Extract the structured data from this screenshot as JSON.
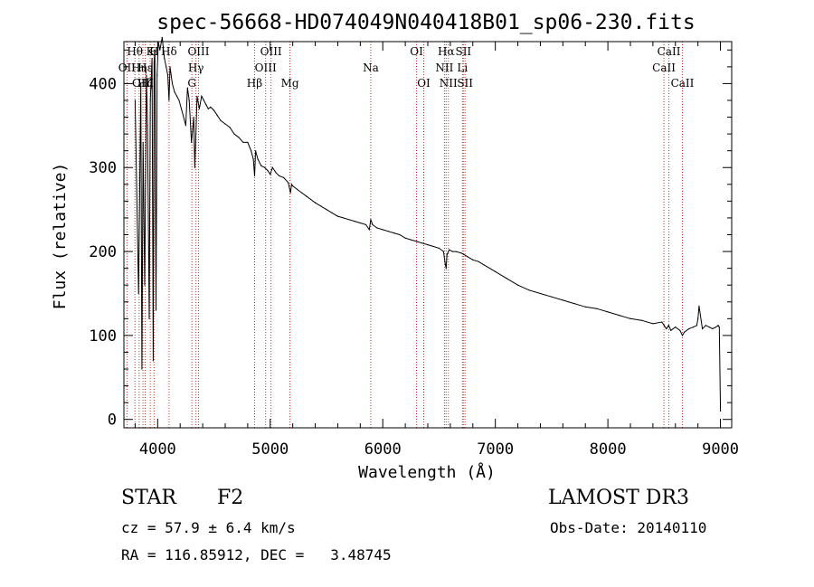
{
  "chart_data": {
    "type": "line",
    "title": "spec-56668-HD074049N040418B01_sp06-230.fits",
    "xlabel": "Wavelength (Å)",
    "ylabel": "Flux (relative)",
    "xlim": [
      3700,
      9100
    ],
    "ylim": [
      -10,
      450
    ],
    "xticks": [
      4000,
      5000,
      6000,
      7000,
      8000,
      9000
    ],
    "yticks": [
      0,
      100,
      200,
      300,
      400
    ],
    "x_minor_step": 200,
    "y_minor_step": 20,
    "series": [
      {
        "name": "flux",
        "x": [
          3800,
          3830,
          3850,
          3860,
          3870,
          3885,
          3900,
          3910,
          3925,
          3935,
          3950,
          3960,
          3968,
          3975,
          3985,
          3995,
          4005,
          4020,
          4040,
          4060,
          4075,
          4090,
          4101,
          4110,
          4130,
          4150,
          4170,
          4190,
          4210,
          4230,
          4250,
          4265,
          4280,
          4300,
          4320,
          4330,
          4340,
          4350,
          4370,
          4390,
          4410,
          4430,
          4450,
          4470,
          4500,
          4530,
          4560,
          4600,
          4640,
          4680,
          4720,
          4760,
          4800,
          4830,
          4850,
          4861,
          4870,
          4890,
          4920,
          4950,
          4980,
          5000,
          5020,
          5050,
          5080,
          5120,
          5160,
          5180,
          5190,
          5200,
          5240,
          5280,
          5320,
          5360,
          5400,
          5450,
          5500,
          5550,
          5600,
          5650,
          5700,
          5750,
          5800,
          5850,
          5880,
          5893,
          5910,
          5950,
          6000,
          6050,
          6100,
          6150,
          6200,
          6250,
          6300,
          6350,
          6400,
          6450,
          6500,
          6540,
          6555,
          6563,
          6570,
          6590,
          6620,
          6650,
          6700,
          6750,
          6800,
          6850,
          6900,
          7000,
          7100,
          7200,
          7300,
          7400,
          7500,
          7600,
          7700,
          7800,
          7900,
          8000,
          8100,
          8200,
          8300,
          8400,
          8480,
          8500,
          8520,
          8540,
          8560,
          8600,
          8640,
          8662,
          8680,
          8720,
          8760,
          8790,
          8800,
          8810,
          8840,
          8870,
          8900,
          8930,
          8960,
          8980,
          8990,
          9000
        ],
        "y": [
          380,
          150,
          400,
          60,
          330,
          160,
          410,
          350,
          120,
          380,
          430,
          70,
          425,
          440,
          130,
          410,
          450,
          440,
          455,
          430,
          420,
          410,
          380,
          420,
          400,
          390,
          385,
          380,
          370,
          360,
          350,
          395,
          380,
          330,
          360,
          300,
          340,
          385,
          370,
          385,
          380,
          375,
          370,
          372,
          368,
          362,
          356,
          352,
          348,
          340,
          336,
          330,
          330,
          320,
          310,
          290,
          320,
          310,
          302,
          300,
          296,
          292,
          300,
          294,
          290,
          288,
          282,
          270,
          280,
          278,
          274,
          270,
          266,
          262,
          258,
          254,
          250,
          246,
          242,
          240,
          238,
          236,
          234,
          232,
          226,
          238,
          232,
          228,
          226,
          224,
          222,
          220,
          216,
          214,
          212,
          210,
          208,
          206,
          204,
          200,
          185,
          180,
          196,
          202,
          200,
          200,
          198,
          194,
          190,
          188,
          184,
          176,
          168,
          160,
          154,
          150,
          146,
          142,
          138,
          134,
          132,
          128,
          124,
          120,
          118,
          114,
          116,
          112,
          108,
          112,
          106,
          110,
          106,
          100,
          104,
          108,
          110,
          112,
          120,
          135,
          108,
          112,
          110,
          108,
          110,
          112,
          110,
          10
        ]
      }
    ],
    "spectral_lines": [
      {
        "label": "Hθ",
        "x": 3798,
        "row": 0
      },
      {
        "label": "OII",
        "x": 3727,
        "row": 1
      },
      {
        "label": "OIII",
        "x": 3869,
        "row": 2
      },
      {
        "label": "K",
        "x": 3934,
        "row": 0
      },
      {
        "label": "H",
        "x": 3968,
        "row": 0
      },
      {
        "label": "Hε",
        "x": 3889,
        "row": 1
      },
      {
        "label": "Hδ",
        "x": 4101,
        "row": 0
      },
      {
        "label": "Hη",
        "x": 3835,
        "row": 1
      },
      {
        "label": "Hζ",
        "x": 3889,
        "row": 2
      },
      {
        "label": "OIII",
        "x": 4363,
        "row": 0
      },
      {
        "label": "Hγ",
        "x": 4340,
        "row": 1
      },
      {
        "label": "G",
        "x": 4304,
        "row": 2
      },
      {
        "label": "OIII",
        "x": 5007,
        "row": 0
      },
      {
        "label": "OIII",
        "x": 4959,
        "row": 1
      },
      {
        "label": "Hβ",
        "x": 4861,
        "row": 2
      },
      {
        "label": "Mg",
        "x": 5175,
        "row": 2
      },
      {
        "label": "Na",
        "x": 5893,
        "row": 1
      },
      {
        "label": "OI",
        "x": 6300,
        "row": 0
      },
      {
        "label": "OI",
        "x": 6364,
        "row": 2
      },
      {
        "label": "Hα",
        "x": 6563,
        "row": 0
      },
      {
        "label": "SII",
        "x": 6716,
        "row": 0
      },
      {
        "label": "NII",
        "x": 6548,
        "row": 1
      },
      {
        "label": "Li",
        "x": 6708,
        "row": 1
      },
      {
        "label": "NII",
        "x": 6583,
        "row": 2
      },
      {
        "label": "SII",
        "x": 6731,
        "row": 2
      },
      {
        "label": "CaII",
        "x": 8542,
        "row": 0
      },
      {
        "label": "CaII",
        "x": 8498,
        "row": 1
      },
      {
        "label": "CaII",
        "x": 8662,
        "row": 2
      }
    ]
  },
  "info": {
    "object_type": "STAR",
    "subclass": "F2",
    "survey": "LAMOST DR3",
    "cz": "cz = 57.9 ± 6.4 km/s",
    "obs_date": "Obs-Date: 20140110",
    "radec": "RA = 116.85912, DEC =   3.48745"
  }
}
